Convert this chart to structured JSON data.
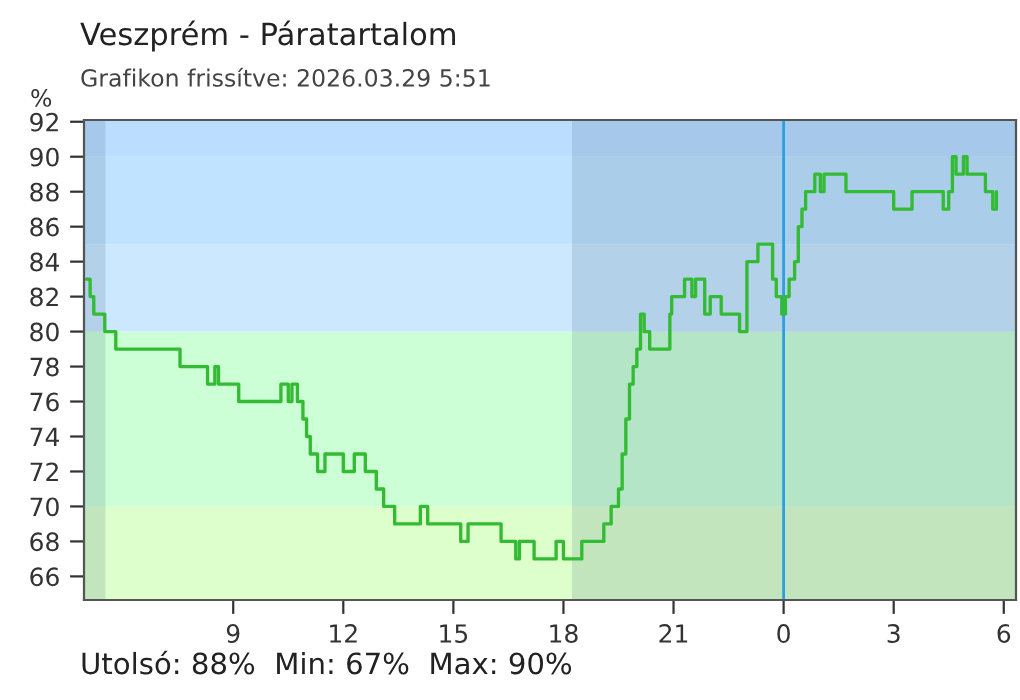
{
  "chart_data": {
    "type": "step",
    "title": "Veszprém - Páratartalom",
    "subtitle": "Grafikon frissítve: 2026.03.29 5:51",
    "ylabel": "%",
    "annotations": [
      "Utolsó: 88%  Min: 67%  Max: 90%"
    ],
    "series": [
      {
        "color": "#33bb33",
        "x": [
          "2026-03-28T05:00",
          "2026-03-28T05:06",
          "2026-03-28T05:12",
          "2026-03-28T05:30",
          "2026-03-28T05:48",
          "2026-03-28T06:00",
          "2026-03-28T07:30",
          "2026-03-28T07:33",
          "2026-03-28T08:06",
          "2026-03-28T08:18",
          "2026-03-28T08:30",
          "2026-03-28T08:36",
          "2026-03-28T09:06",
          "2026-03-28T09:09",
          "2026-03-28T10:12",
          "2026-03-28T10:18",
          "2026-03-28T10:30",
          "2026-03-28T10:36",
          "2026-03-28T10:45",
          "2026-03-28T10:54",
          "2026-03-28T11:00",
          "2026-03-28T11:06",
          "2026-03-28T11:18",
          "2026-03-28T11:30",
          "2026-03-28T12:00",
          "2026-03-28T12:18",
          "2026-03-28T12:30",
          "2026-03-28T12:36",
          "2026-03-28T12:54",
          "2026-03-28T13:06",
          "2026-03-28T13:24",
          "2026-03-28T14:00",
          "2026-03-28T14:06",
          "2026-03-28T14:18",
          "2026-03-28T14:24",
          "2026-03-28T15:06",
          "2026-03-28T15:12",
          "2026-03-28T15:24",
          "2026-03-28T15:36",
          "2026-03-28T16:12",
          "2026-03-28T16:18",
          "2026-03-28T16:42",
          "2026-03-28T16:48",
          "2026-03-28T17:00",
          "2026-03-28T17:12",
          "2026-03-28T17:24",
          "2026-03-28T17:48",
          "2026-03-28T18:00",
          "2026-03-28T18:18",
          "2026-03-28T18:30",
          "2026-03-28T19:00",
          "2026-03-28T19:06",
          "2026-03-28T19:18",
          "2026-03-28T19:30",
          "2026-03-28T19:36",
          "2026-03-28T19:42",
          "2026-03-28T19:48",
          "2026-03-28T19:54",
          "2026-03-28T20:00",
          "2026-03-28T20:06",
          "2026-03-28T20:12",
          "2026-03-28T20:21",
          "2026-03-28T20:45",
          "2026-03-28T20:54",
          "2026-03-28T20:57",
          "2026-03-28T21:12",
          "2026-03-28T21:18",
          "2026-03-28T21:30",
          "2026-03-28T21:36",
          "2026-03-28T21:45",
          "2026-03-28T21:51",
          "2026-03-28T22:00",
          "2026-03-28T22:12",
          "2026-03-28T22:18",
          "2026-03-28T22:45",
          "2026-03-28T22:48",
          "2026-03-28T22:57",
          "2026-03-28T23:00",
          "2026-03-28T23:18",
          "2026-03-28T23:36",
          "2026-03-28T23:42",
          "2026-03-28T23:48",
          "2026-03-28T23:57",
          "2026-03-29T00:03",
          "2026-03-29T00:09",
          "2026-03-29T00:18",
          "2026-03-29T00:24",
          "2026-03-29T00:30",
          "2026-03-29T00:36",
          "2026-03-29T00:51",
          "2026-03-29T01:00",
          "2026-03-29T01:06",
          "2026-03-29T01:18",
          "2026-03-29T01:36",
          "2026-03-29T01:42",
          "2026-03-29T03:00",
          "2026-03-29T03:18",
          "2026-03-29T03:30",
          "2026-03-29T04:15",
          "2026-03-29T04:21",
          "2026-03-29T04:30",
          "2026-03-29T04:36",
          "2026-03-29T04:42",
          "2026-03-29T04:54",
          "2026-03-29T05:00",
          "2026-03-29T05:24",
          "2026-03-29T05:30",
          "2026-03-29T05:42",
          "2026-03-29T05:48"
        ],
        "values": [
          83,
          82,
          81,
          80,
          79,
          79,
          79,
          78,
          78,
          77,
          78,
          77,
          77,
          76,
          76,
          77,
          76,
          77,
          76,
          75,
          74,
          73,
          72,
          73,
          72,
          73,
          73,
          72,
          71,
          70,
          69,
          69,
          70,
          69,
          69,
          69,
          68,
          69,
          69,
          69,
          68,
          67,
          68,
          68,
          67,
          67,
          68,
          67,
          67,
          68,
          68,
          69,
          70,
          71,
          73,
          75,
          77,
          78,
          79,
          81,
          80,
          79,
          79,
          81,
          82,
          82,
          83,
          82,
          83,
          83,
          81,
          82,
          82,
          81,
          81,
          80,
          80,
          84,
          85,
          85,
          83,
          82,
          81,
          82,
          83,
          84,
          86,
          87,
          88,
          89,
          88,
          89,
          89,
          89,
          88,
          87,
          87,
          88,
          88,
          87,
          88,
          90,
          89,
          90,
          89,
          89,
          88,
          87,
          88
        ]
      }
    ],
    "xlim": [
      "2026-03-28T04:56",
      "2026-03-29T06:20"
    ],
    "ylim": [
      64.65,
      92.1
    ],
    "xticks": [
      {
        "value": "2026-03-28T09:00",
        "label": "9"
      },
      {
        "value": "2026-03-28T12:00",
        "label": "12"
      },
      {
        "value": "2026-03-28T15:00",
        "label": "15"
      },
      {
        "value": "2026-03-28T18:00",
        "label": "18"
      },
      {
        "value": "2026-03-28T21:00",
        "label": "21"
      },
      {
        "value": "2026-03-29T00:00",
        "label": "0"
      },
      {
        "value": "2026-03-29T03:00",
        "label": "3"
      },
      {
        "value": "2026-03-29T06:00",
        "label": "6"
      }
    ],
    "yticks": [
      66,
      68,
      70,
      72,
      74,
      76,
      78,
      80,
      82,
      84,
      86,
      88,
      90,
      92
    ],
    "bands": [
      {
        "axis": "y",
        "from": 64.65,
        "to": 70,
        "color": "#ddffcc"
      },
      {
        "axis": "y",
        "from": 70,
        "to": 80,
        "color": "#ccffd5"
      },
      {
        "axis": "y",
        "from": 80,
        "to": 85,
        "color": "#cce8ff"
      },
      {
        "axis": "y",
        "from": 85,
        "to": 90,
        "color": "#c0e4ff"
      },
      {
        "axis": "y",
        "from": 90,
        "to": 92.1,
        "color": "#bbddff"
      },
      {
        "axis": "x",
        "from": "2026-03-28T04:56",
        "to": "2026-03-28T05:31",
        "color": "#305070"
      },
      {
        "axis": "x",
        "from": "2026-03-28T18:14",
        "to": "2026-03-29T06:20",
        "color": "#305070"
      }
    ],
    "ref_lines": [
      {
        "axis": "x",
        "value": "2026-03-29T00:00",
        "color": "#2b9fe0"
      }
    ],
    "grid": false,
    "legend": false
  }
}
